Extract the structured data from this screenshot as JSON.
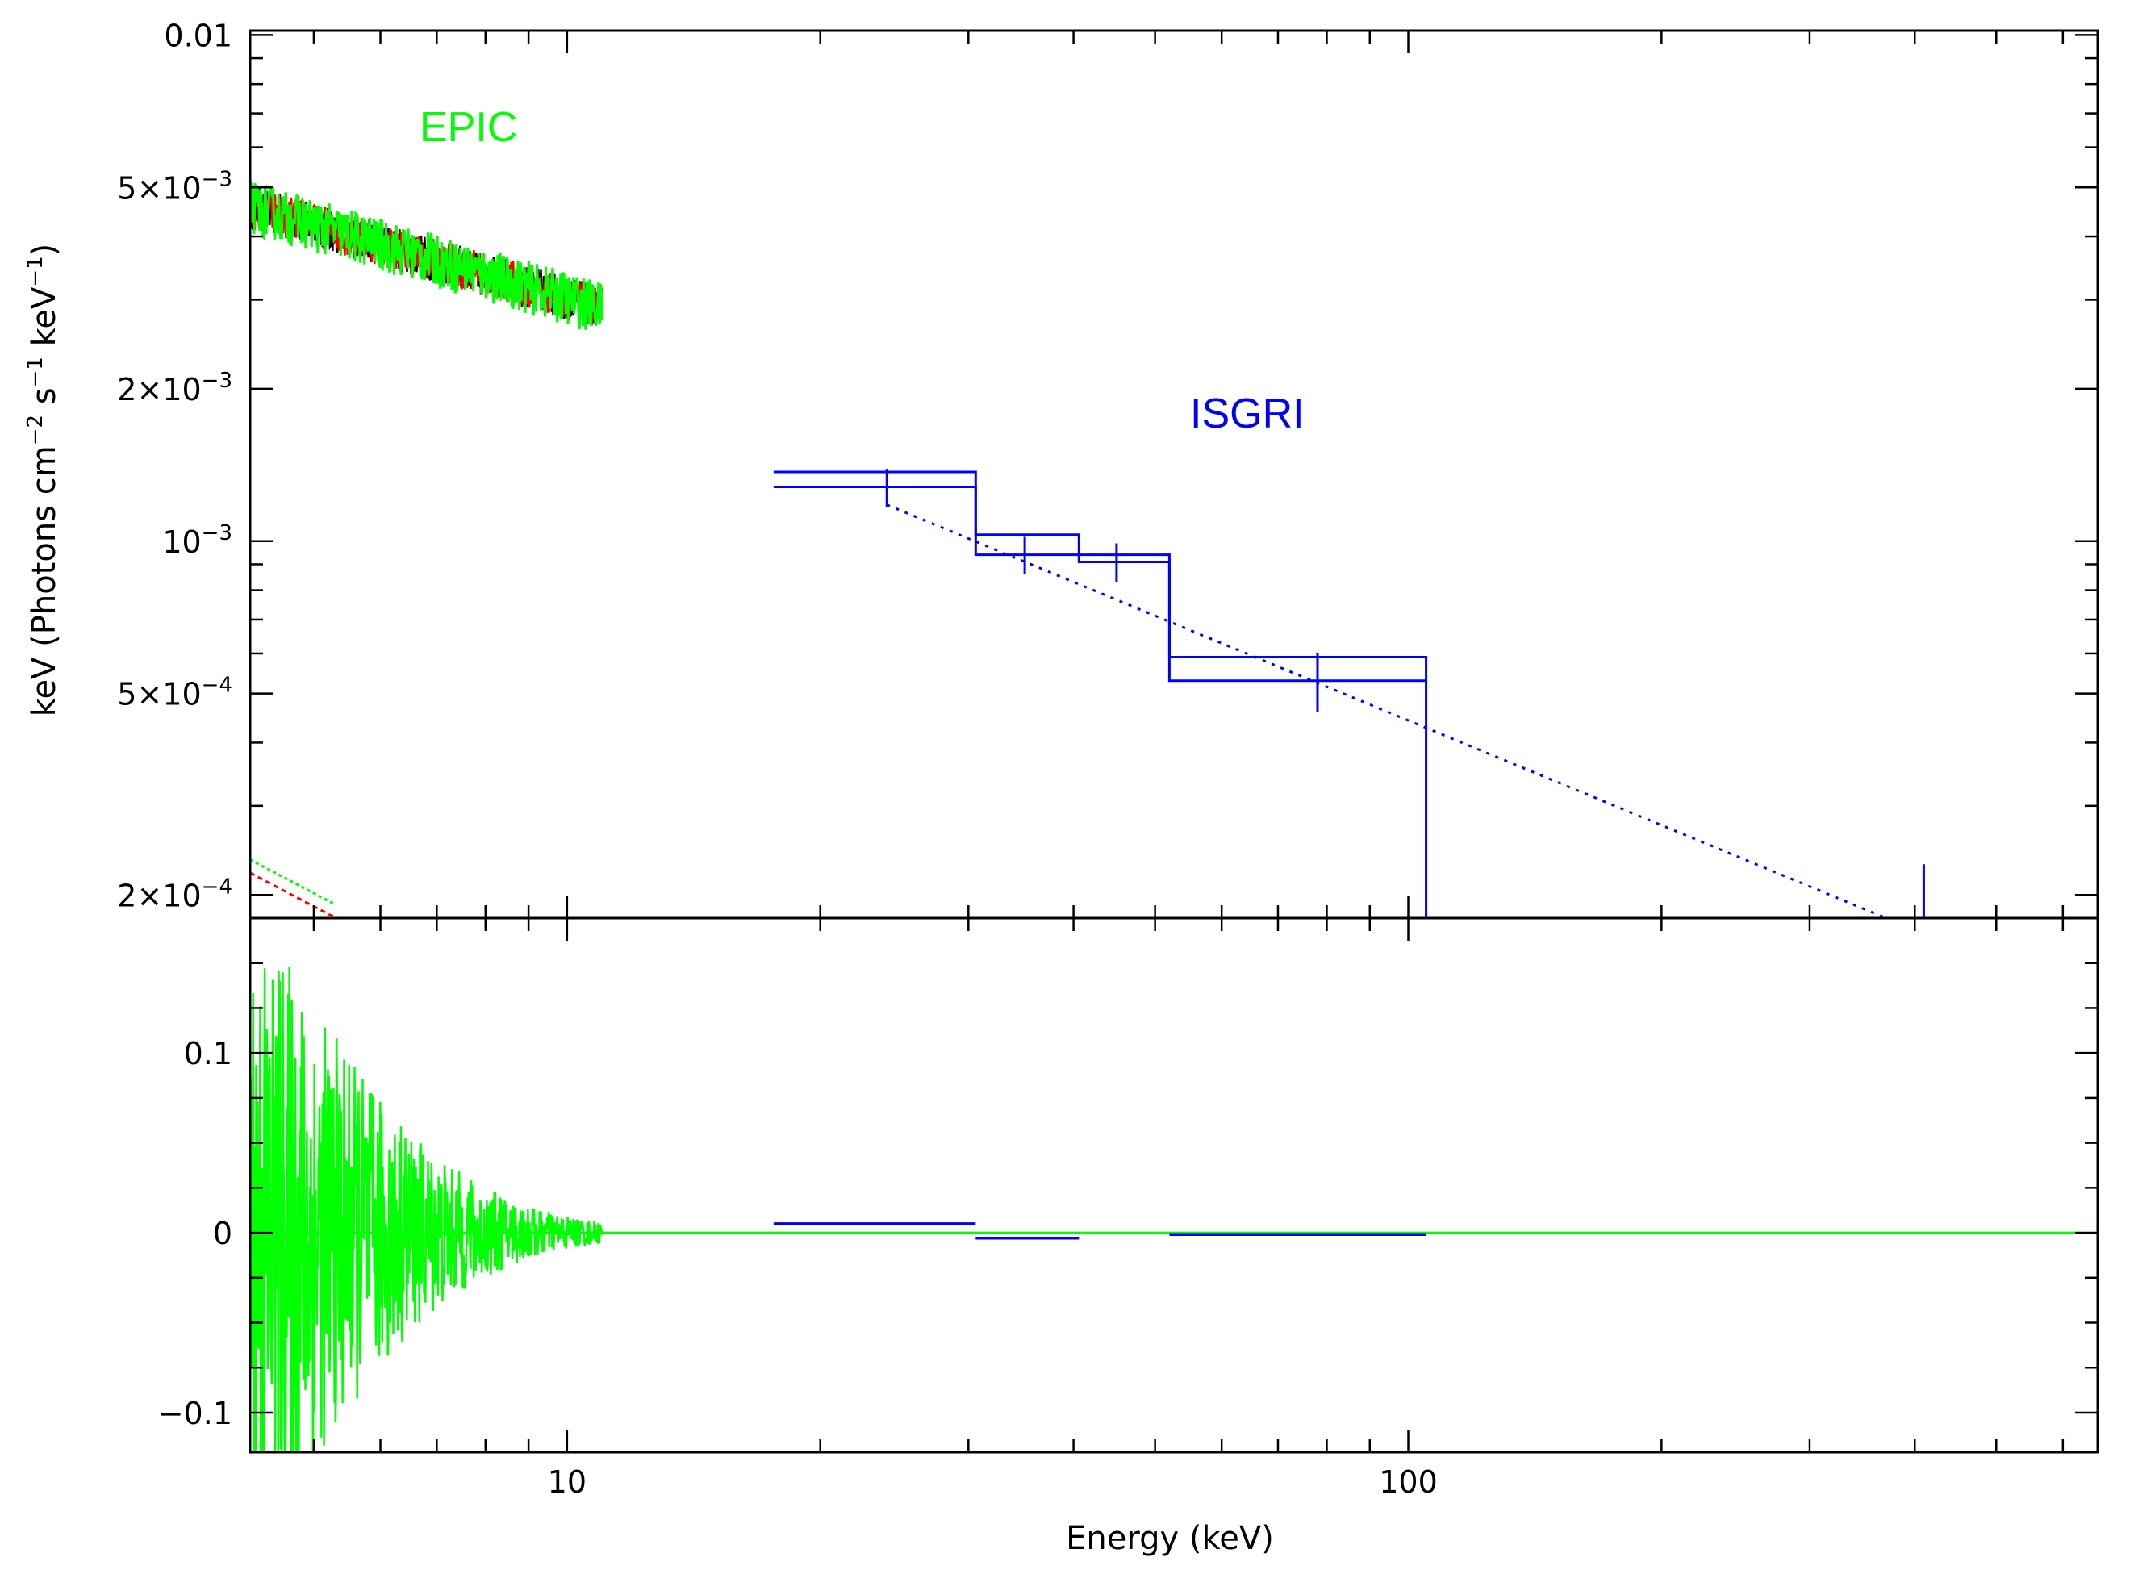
{
  "colors": {
    "epic": "#00ff00",
    "epic_alt1": "#ff0000",
    "epic_alt2": "#000000",
    "isgri": "#0000ff",
    "frame": "#000000"
  },
  "chart_data": [
    {
      "type": "line",
      "panel": "top",
      "xscale": "log",
      "yscale": "log",
      "xlim": [
        4.2,
        660
      ],
      "ylim": [
        0.00018,
        0.0102
      ],
      "ylabel_parts": {
        "pre": "keV (Photons cm",
        "e1": "−2",
        "mid1": " s",
        "e2": "−1",
        "mid2": " keV",
        "e3": "−1",
        "post": ")"
      },
      "yticks": [
        {
          "value": 0.01,
          "base": "0.01",
          "exp": ""
        },
        {
          "value": 0.005,
          "base": "5×10",
          "exp": "−3"
        },
        {
          "value": 0.002,
          "base": "2×10",
          "exp": "−3"
        },
        {
          "value": 0.001,
          "base": "10",
          "exp": "−3"
        },
        {
          "value": 0.0005,
          "base": "5×10",
          "exp": "−4"
        },
        {
          "value": 0.0002,
          "base": "2×10",
          "exp": "−4"
        }
      ],
      "annotations": [
        {
          "text": "EPIC",
          "color": "#00ff00"
        },
        {
          "text": "ISGRI",
          "color": "#0000ff"
        }
      ],
      "series": [
        {
          "instrument": "EPIC",
          "x_range": [
            4.2,
            11.0
          ],
          "y_start": 0.0046,
          "y_end": 0.0029,
          "scatter_fraction": 0.09
        },
        {
          "instrument": "ISGRI",
          "bins": [
            {
              "x": 24.0,
              "xlo": 17.6,
              "xhi": 30.6,
              "y": 0.00128,
              "yerr": 0.00011,
              "model_upper": 0.00137
            },
            {
              "x": 35.0,
              "xlo": 30.6,
              "xhi": 40.6,
              "y": 0.00094,
              "yerr": 8e-05,
              "model_upper": 0.00103
            },
            {
              "x": 45.0,
              "xlo": 40.6,
              "xhi": 52.0,
              "y": 0.00091,
              "yerr": 8e-05,
              "model_upper": 0.00094
            },
            {
              "x": 78.0,
              "xlo": 52.0,
              "xhi": 105.0,
              "y": 0.00053,
              "yerr": 7e-05,
              "model_upper": 0.00059
            }
          ],
          "upper_limit": {
            "x": 410,
            "y": 0.00023
          },
          "model": [
            {
              "x": 24,
              "y": 0.00118
            },
            {
              "x": 370,
              "y": 0.00018
            }
          ]
        },
        {
          "instrument": "EPIC model",
          "model": [
            {
              "x": 4.2,
              "y": 0.000228
            },
            {
              "x": 5.3,
              "y": 0.000186
            }
          ]
        }
      ]
    },
    {
      "type": "line",
      "panel": "bottom",
      "xscale": "log",
      "xlim": [
        4.2,
        660
      ],
      "ylim": [
        -0.122,
        0.175
      ],
      "xlabel": "Energy (keV)",
      "xticks": [
        {
          "value": 10,
          "label": "10"
        },
        {
          "value": 100,
          "label": "100"
        }
      ],
      "yticks": [
        {
          "value": 0.1,
          "label": "0.1"
        },
        {
          "value": 0,
          "label": "0"
        },
        {
          "value": -0.1,
          "label": "−0.1"
        }
      ],
      "series": [
        {
          "instrument": "EPIC residuals",
          "x_range": [
            4.2,
            11.0
          ],
          "amplitude_start": 0.175,
          "amplitude_end": 0.006
        },
        {
          "instrument": "ISGRI residuals",
          "bins": [
            {
              "xlo": 17.6,
              "xhi": 30.6,
              "y": 0.005
            },
            {
              "xlo": 30.6,
              "xhi": 40.6,
              "y": -0.003
            },
            {
              "xlo": 52.0,
              "xhi": 105.0,
              "y": -0.001
            }
          ]
        },
        {
          "instrument": "zero line",
          "y": 0
        }
      ]
    }
  ]
}
